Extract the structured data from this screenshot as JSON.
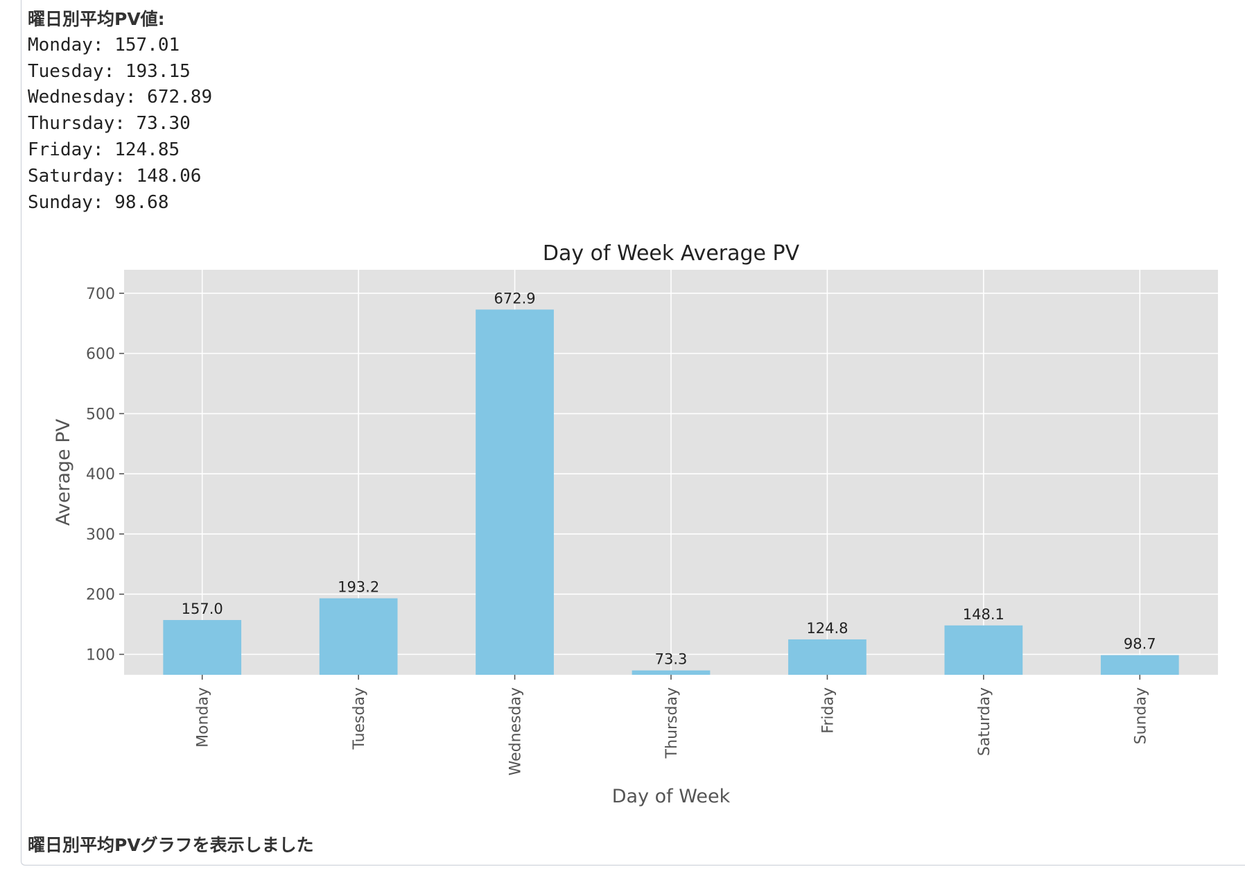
{
  "output": {
    "heading": "曜日別平均PV値:",
    "lines": [
      "Monday: 157.01",
      "Tuesday: 193.15",
      "Wednesday: 672.89",
      "Thursday: 73.30",
      "Friday: 124.85",
      "Saturday: 148.06",
      "Sunday: 98.68"
    ],
    "footer": "曜日別平均PVグラフを表示しました"
  },
  "chart_data": {
    "type": "bar",
    "title": "Day of Week Average PV",
    "xlabel": "Day of Week",
    "ylabel": "Average PV",
    "categories": [
      "Monday",
      "Tuesday",
      "Wednesday",
      "Thursday",
      "Friday",
      "Saturday",
      "Sunday"
    ],
    "values": [
      157.01,
      193.15,
      672.89,
      73.3,
      124.85,
      148.06,
      98.68
    ],
    "data_labels": [
      "157.0",
      "193.2",
      "672.9",
      "73.3",
      "124.8",
      "148.1",
      "98.7"
    ],
    "yticks": [
      100,
      200,
      300,
      400,
      500,
      600,
      700
    ],
    "ylim": [
      66,
      739
    ],
    "grid": true,
    "bar_color": "#82c6e4",
    "plot_background": "#e2e2e2",
    "gridline_color": "#ffffff"
  }
}
